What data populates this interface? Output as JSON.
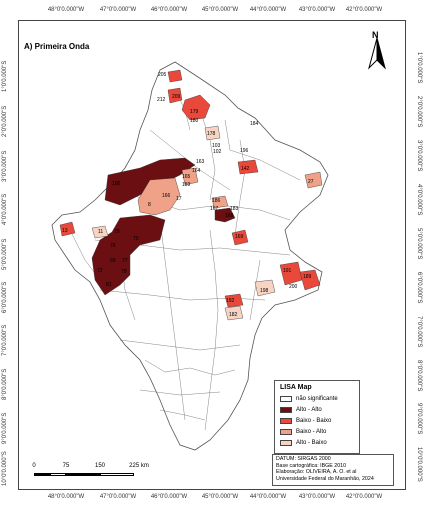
{
  "map": {
    "title": "A) Primeira Onda",
    "north_label": "N",
    "longitude_labels": [
      "48°0'0.000\"W",
      "47°0'0.000\"W",
      "46°0'0.000\"W",
      "45°0'0.000\"W",
      "44°0'0.000\"W",
      "43°0'0.000\"W",
      "42°0'0.000\"W"
    ],
    "latitude_labels": [
      "1°0'0.000\"S",
      "2°0'0.000\"S",
      "3°0'0.000\"S",
      "4°0'0.000\"S",
      "5°0'0.000\"S",
      "6°0'0.000\"S",
      "7°0'0.000\"S",
      "8°0'0.000\"S",
      "9°0'0.000\"S",
      "10°0'0.000\"S",
      "11°0'0.000\"S"
    ],
    "colors": {
      "nao_significante": "#ffffff",
      "alto_alto": "#6b0f12",
      "baixo_baixo": "#e8493a",
      "baixo_alto": "#f0a288",
      "alto_baixo": "#f7d3c4"
    },
    "cluster_labels": [
      "205",
      "212",
      "209",
      "179",
      "180",
      "178",
      "196",
      "184",
      "103",
      "102",
      "163",
      "164",
      "165",
      "159",
      "160",
      "8",
      "166",
      "17",
      "186",
      "167",
      "183",
      "167",
      "168",
      "169",
      "11",
      "13",
      "79",
      "70",
      "76",
      "69",
      "77",
      "72",
      "78",
      "81",
      "191",
      "189",
      "200",
      "192",
      "198",
      "182",
      "212",
      "142",
      "27",
      "24"
    ]
  },
  "legend": {
    "title": "LISA Map",
    "items": [
      {
        "label": "não significante",
        "color": "#ffffff"
      },
      {
        "label": "Alto - Alto",
        "color": "#6b0f12"
      },
      {
        "label": "Baixo - Baixo",
        "color": "#e8493a"
      },
      {
        "label": "Baixo - Alto",
        "color": "#f0a288"
      },
      {
        "label": "Alto - Baixo",
        "color": "#f7d3c4"
      }
    ]
  },
  "scale": {
    "labels": [
      "0",
      "75",
      "150",
      "225 km"
    ]
  },
  "credits": {
    "lines": [
      "DATUM: SIRGAS 2000",
      "Base cartográfica: IBGE 2010",
      "Elaboração: OLIVEIRA, A. O. et al",
      "Universidade Federal do Maranhão, 2024"
    ]
  }
}
